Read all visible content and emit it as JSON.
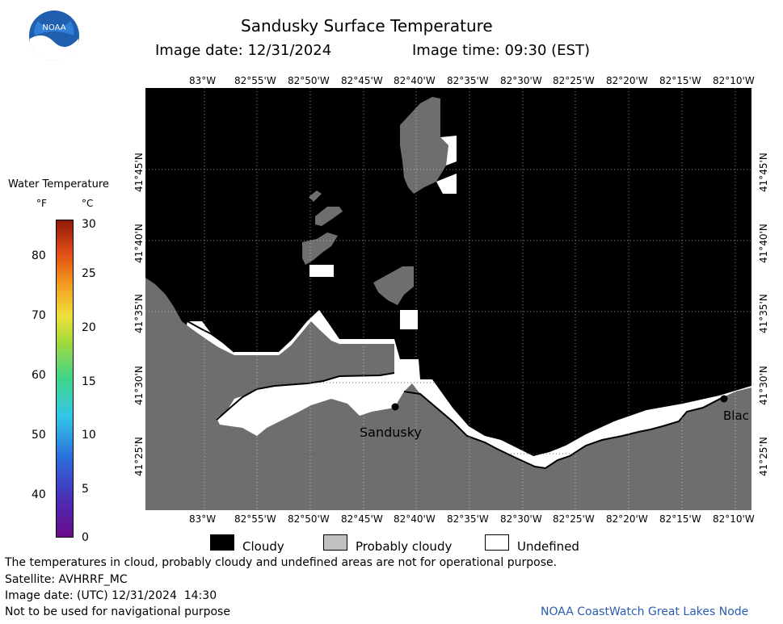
{
  "header": {
    "title": "Sandusky Surface Temperature",
    "image_date_label": "Image date: 12/31/2024",
    "image_time_label": "Image time: 09:30 (EST)"
  },
  "logo": {
    "text": "NOAA"
  },
  "axes": {
    "lon_labels": [
      "83°W",
      "82°55'W",
      "82°50'W",
      "82°45'W",
      "82°40'W",
      "82°35'W",
      "82°30'W",
      "82°25'W",
      "82°20'W",
      "82°15'W",
      "82°10'W"
    ],
    "lat_labels": [
      "41°45'N",
      "41°40'N",
      "41°35'N",
      "41°30'N",
      "41°25'N"
    ]
  },
  "colorbar": {
    "title": "Water Temperature",
    "unit_f": "°F",
    "unit_c": "°C",
    "f_ticks": [
      "80",
      "70",
      "60",
      "50",
      "40"
    ],
    "c_ticks": [
      "30",
      "25",
      "20",
      "15",
      "10",
      "5",
      "0"
    ]
  },
  "places": {
    "sandusky": "Sandusky",
    "blac": "Blac"
  },
  "legend": {
    "cloudy": "Cloudy",
    "probably_cloudy": "Probably cloudy",
    "undefined": "Undefined"
  },
  "footer": {
    "disclaimer": "The temperatures in cloud, probably cloudy and undefined areas are not for operational purpose.",
    "satellite": "Satellite: AVHRRF_MC",
    "utc_date": "Image date: (UTC) 12/31/2024  14:30",
    "nav_warning": "Not to be used for navigational purpose",
    "credit": "NOAA CoastWatch Great Lakes Node"
  },
  "colors": {
    "cloudy": "#000000",
    "probably_cloudy": "#6e6e6e",
    "undefined": "#ffffff",
    "credit_link": "#2a5db0"
  }
}
